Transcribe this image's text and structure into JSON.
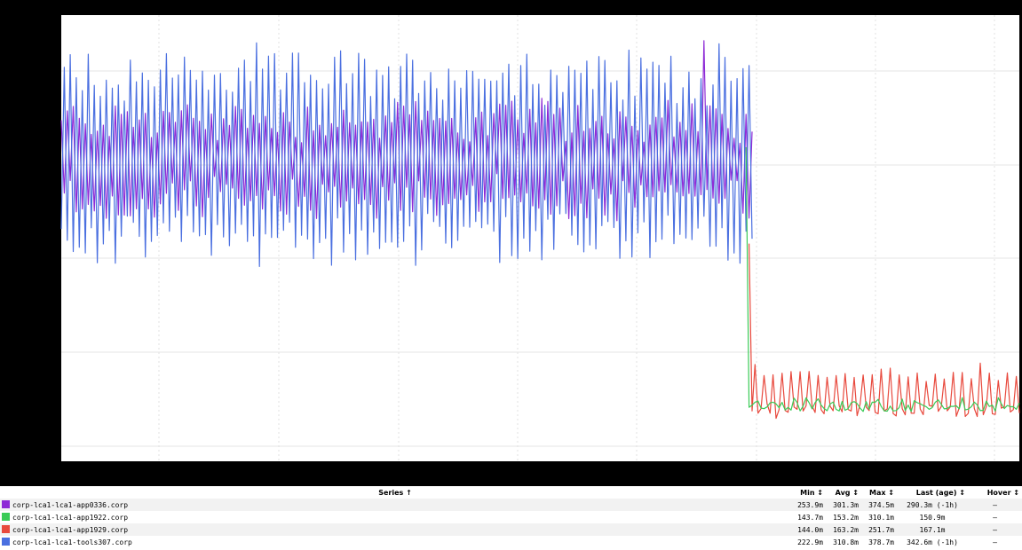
{
  "chart_data": {
    "type": "line",
    "title": "",
    "xlabel": "",
    "ylabel": "",
    "grid": true,
    "legend_placement": "bottom table",
    "colors": {
      "corp-lca1-lca1-app0336.corp": "#8e2bd6",
      "corp-lca1-lca1-app1922.corp": "#3acb57",
      "corp-lca1-lca1-app1929.corp": "#e8493d",
      "corp-lca1-lca1-tools307.corp": "#4a6fe0"
    },
    "series": [
      {
        "name": "corp-lca1-lca1-app0336.corp",
        "color": "#8e2bd6",
        "min": 253.9,
        "avg": 301.3,
        "max": 374.5,
        "last": 290.3
      },
      {
        "name": "corp-lca1-lca1-app1922.corp",
        "color": "#3acb57",
        "min": 143.7,
        "avg": 153.2,
        "max": 310.1,
        "last": 150.9
      },
      {
        "name": "corp-lca1-lca1-app1929.corp",
        "color": "#e8493d",
        "min": 144.0,
        "avg": 163.2,
        "max": 251.7,
        "last": 167.1
      },
      {
        "name": "corp-lca1-lca1-tools307.corp",
        "color": "#4a6fe0",
        "min": 222.9,
        "avg": 310.8,
        "max": 378.7,
        "last": 342.6
      }
    ]
  },
  "legend": {
    "headers": {
      "series": "Series ↑",
      "min": "Min ↕",
      "avg": "Avg ↕",
      "max": "Max ↕",
      "last": "Last (age) ↕",
      "hover": "Hover ↕"
    },
    "rows": [
      {
        "name": "corp-lca1-lca1-app0336.corp",
        "color": "#8e2bd6",
        "min": "253.9m",
        "avg": "301.3m",
        "max": "374.5m",
        "last": "290.3m (-1h)",
        "hover": "–"
      },
      {
        "name": "corp-lca1-lca1-app1922.corp",
        "color": "#3acb57",
        "min": "143.7m",
        "avg": "153.2m",
        "max": "310.1m",
        "last": "150.9m",
        "hover": "–"
      },
      {
        "name": "corp-lca1-lca1-app1929.corp",
        "color": "#e8493d",
        "min": "144.0m",
        "avg": "163.2m",
        "max": "251.7m",
        "last": "167.1m",
        "hover": "–"
      },
      {
        "name": "corp-lca1-lca1-tools307.corp",
        "color": "#4a6fe0",
        "min": "222.9m",
        "avg": "310.8m",
        "max": "378.7m",
        "last": "342.6m (-1h)",
        "hover": "–"
      }
    ]
  }
}
